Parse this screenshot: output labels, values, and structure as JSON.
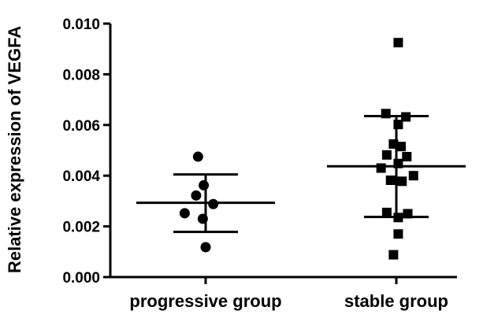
{
  "chart_data": {
    "type": "scatter",
    "title": "",
    "xlabel": "",
    "ylabel": "Relative expression of VEGFA",
    "ylim": [
      0,
      0.01
    ],
    "y_ticks": [
      "0.000",
      "0.002",
      "0.004",
      "0.006",
      "0.008",
      "0.010"
    ],
    "grid": false,
    "legend": "none",
    "categories": [
      "progressive group",
      "stable group"
    ],
    "series": [
      {
        "category": "progressive group",
        "marker": "circle",
        "color": "#000000",
        "points": [
          {
            "x_offset": -0.08,
            "y": 0.00475
          },
          {
            "x_offset": -0.1,
            "y": 0.00322
          },
          {
            "x_offset": -0.02,
            "y": 0.00362
          },
          {
            "x_offset": 0.08,
            "y": 0.00288
          },
          {
            "x_offset": -0.22,
            "y": 0.00252
          },
          {
            "x_offset": -0.03,
            "y": 0.0023
          },
          {
            "x_offset": 0.0,
            "y": 0.00118
          }
        ],
        "mean": 0.00293,
        "sd_upper": 0.00405,
        "sd_lower": 0.00178
      },
      {
        "category": "stable group",
        "marker": "square",
        "color": "#000000",
        "points": [
          {
            "x_offset": 0.02,
            "y": 0.00925
          },
          {
            "x_offset": -0.11,
            "y": 0.00645
          },
          {
            "x_offset": 0.1,
            "y": 0.00632
          },
          {
            "x_offset": 0.02,
            "y": 0.00602
          },
          {
            "x_offset": -0.03,
            "y": 0.00525
          },
          {
            "x_offset": 0.05,
            "y": 0.00515
          },
          {
            "x_offset": -0.1,
            "y": 0.00482
          },
          {
            "x_offset": 0.11,
            "y": 0.00475
          },
          {
            "x_offset": -0.16,
            "y": 0.0043
          },
          {
            "x_offset": 0.02,
            "y": 0.00448
          },
          {
            "x_offset": 0.18,
            "y": 0.004
          },
          {
            "x_offset": -0.06,
            "y": 0.00382
          },
          {
            "x_offset": 0.06,
            "y": 0.00378
          },
          {
            "x_offset": -0.1,
            "y": 0.00255
          },
          {
            "x_offset": 0.12,
            "y": 0.0025
          },
          {
            "x_offset": 0.02,
            "y": 0.00235
          },
          {
            "x_offset": 0.02,
            "y": 0.0017
          },
          {
            "x_offset": -0.03,
            "y": 0.00088
          }
        ],
        "mean": 0.00437,
        "sd_upper": 0.00635,
        "sd_lower": 0.00237
      }
    ]
  }
}
